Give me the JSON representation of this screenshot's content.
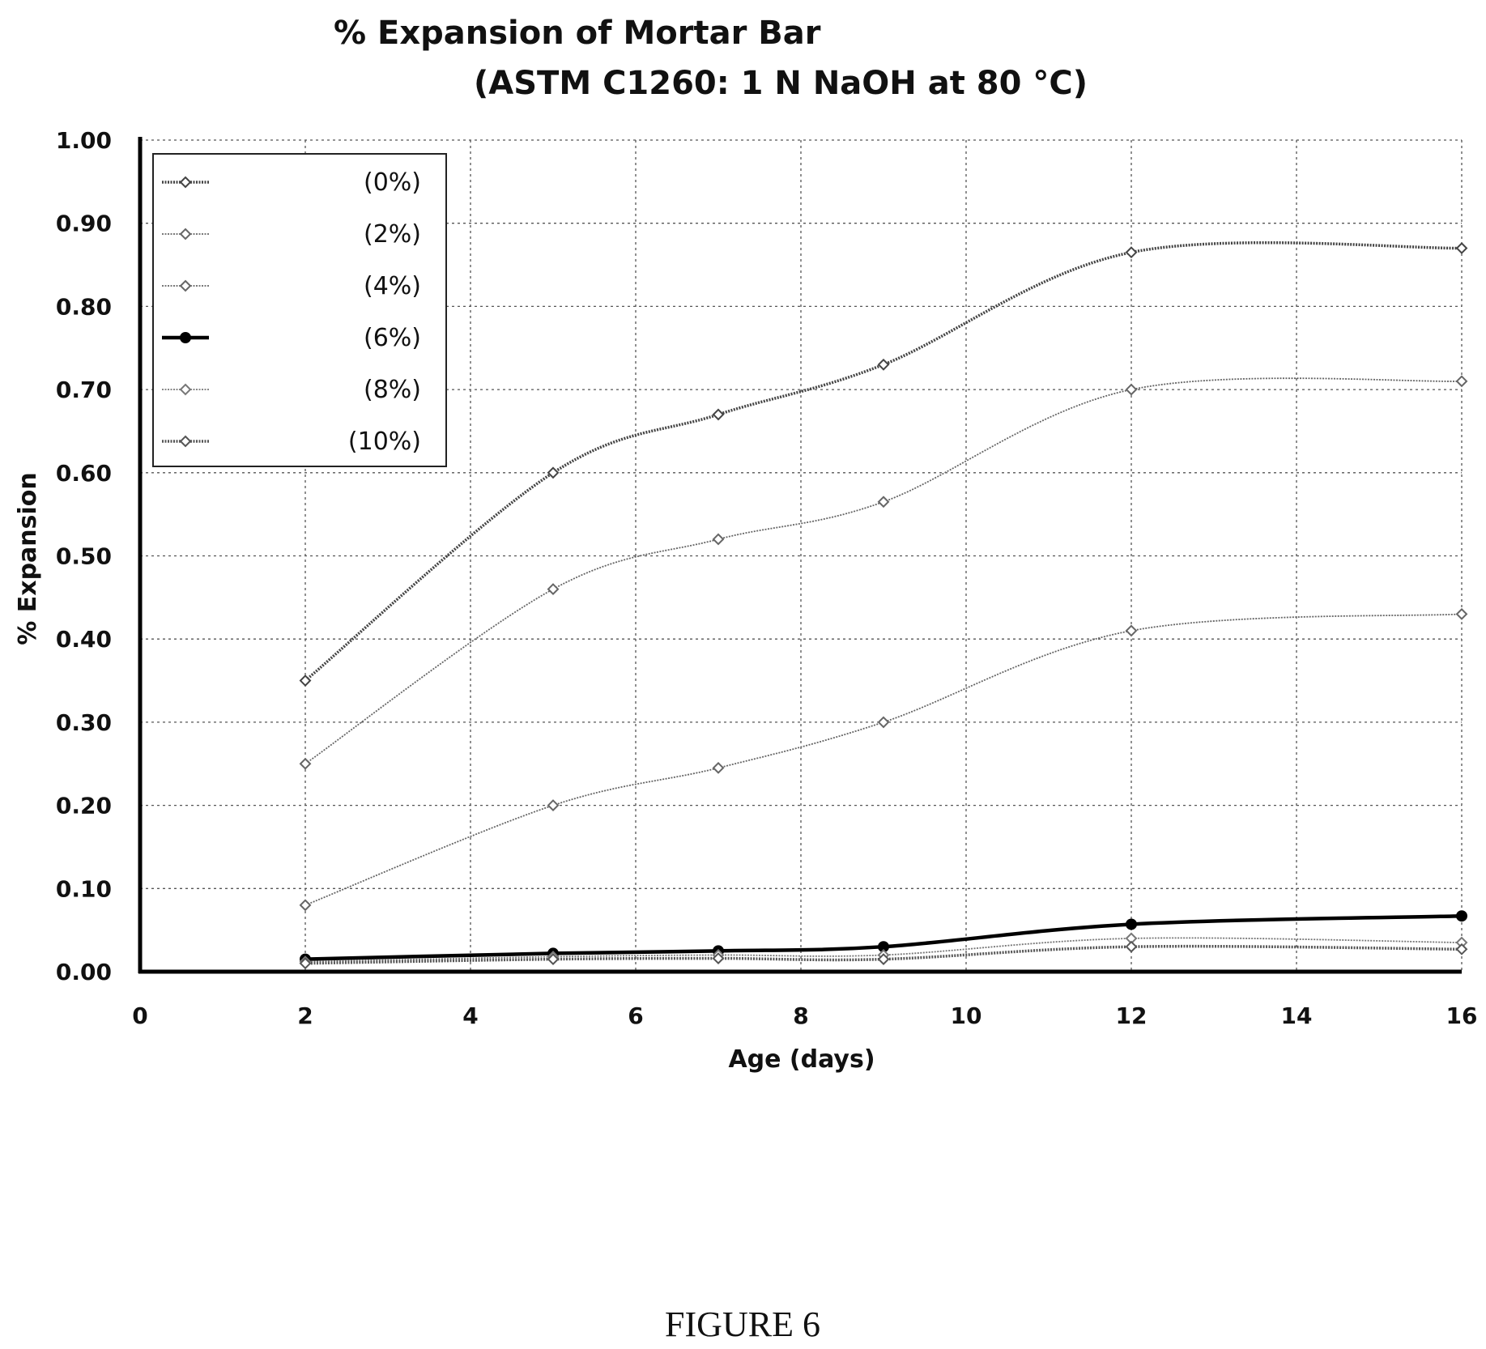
{
  "chart_data": {
    "type": "line",
    "title": "% Expansion of Mortar Bar",
    "subtitle": "(ASTM C1260: 1 N NaOH at 80 °C)",
    "xlabel": "Age (days)",
    "ylabel": "% Expansion",
    "xlim": [
      0,
      16
    ],
    "ylim": [
      0,
      1.0
    ],
    "x_ticks": [
      "0",
      "2",
      "4",
      "6",
      "8",
      "10",
      "12",
      "14",
      "16"
    ],
    "y_ticks": [
      "0.00",
      "0.10",
      "0.20",
      "0.30",
      "0.40",
      "0.50",
      "0.60",
      "0.70",
      "0.80",
      "0.90",
      "1.00"
    ],
    "grid": true,
    "legend_position": "top-left",
    "x": [
      2,
      5,
      7,
      9,
      12,
      16
    ],
    "series": [
      {
        "name": "(0%)",
        "values": [
          0.35,
          0.6,
          0.67,
          0.73,
          0.865,
          0.87
        ],
        "color": "#444444",
        "style": "thick-light"
      },
      {
        "name": "(2%)",
        "values": [
          0.25,
          0.46,
          0.52,
          0.565,
          0.7,
          0.71
        ],
        "color": "#666666",
        "style": "thin"
      },
      {
        "name": "(4%)",
        "values": [
          0.08,
          0.2,
          0.245,
          0.3,
          0.41,
          0.43
        ],
        "color": "#666666",
        "style": "thin"
      },
      {
        "name": "(6%)",
        "values": [
          0.015,
          0.022,
          0.025,
          0.03,
          0.057,
          0.067
        ],
        "color": "#000000",
        "style": "bold"
      },
      {
        "name": "(8%)",
        "values": [
          0.012,
          0.018,
          0.02,
          0.02,
          0.04,
          0.035
        ],
        "color": "#777777",
        "style": "thin"
      },
      {
        "name": "(10%)",
        "values": [
          0.01,
          0.015,
          0.016,
          0.015,
          0.03,
          0.027
        ],
        "color": "#555555",
        "style": "thick-light"
      }
    ]
  },
  "caption": "FIGURE 6"
}
